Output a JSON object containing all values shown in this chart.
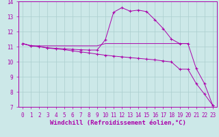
{
  "xlabel": "Windchill (Refroidissement éolien,°C)",
  "bg_color": "#cce8e8",
  "grid_color": "#aacece",
  "line_color": "#aa00aa",
  "xlim": [
    -0.5,
    23.5
  ],
  "ylim": [
    7,
    14
  ],
  "yticks": [
    7,
    8,
    9,
    10,
    11,
    12,
    13,
    14
  ],
  "xticks": [
    0,
    1,
    2,
    3,
    4,
    5,
    6,
    7,
    8,
    9,
    10,
    11,
    12,
    13,
    14,
    15,
    16,
    17,
    18,
    19,
    20,
    21,
    22,
    23
  ],
  "line1_x": [
    0,
    1,
    2,
    3,
    4,
    5,
    6,
    7,
    8,
    9,
    10,
    11,
    12,
    13,
    14,
    15,
    16,
    17,
    18,
    19,
    20,
    21,
    22,
    23
  ],
  "line1_y": [
    11.2,
    11.05,
    11.0,
    10.9,
    10.85,
    10.8,
    10.72,
    10.65,
    10.58,
    10.5,
    10.43,
    10.37,
    10.32,
    10.27,
    10.22,
    10.17,
    10.12,
    10.05,
    9.98,
    9.5,
    9.5,
    8.55,
    7.85,
    7.1
  ],
  "line2_x": [
    0,
    1,
    2,
    3,
    4,
    5,
    6,
    7,
    8,
    9,
    10,
    11,
    12,
    13,
    14,
    15,
    16,
    17,
    18,
    19,
    20,
    21,
    22,
    23
  ],
  "line2_y": [
    11.2,
    11.05,
    11.0,
    10.92,
    10.88,
    10.85,
    10.82,
    10.79,
    10.77,
    10.77,
    11.45,
    13.28,
    13.58,
    13.35,
    13.42,
    13.32,
    12.78,
    12.2,
    11.5,
    11.2,
    11.2,
    9.55,
    8.55,
    7.1
  ],
  "line3_x": [
    0,
    1,
    2,
    3,
    4,
    5,
    6,
    7,
    8,
    9,
    10,
    20
  ],
  "line3_y": [
    11.2,
    11.05,
    11.05,
    11.05,
    11.05,
    11.05,
    11.05,
    11.05,
    11.05,
    11.05,
    11.2,
    11.2
  ],
  "tick_fontsize": 5.5,
  "xlabel_fontsize": 6.5,
  "marker": "+",
  "markersize": 3.5,
  "lw": 0.7
}
